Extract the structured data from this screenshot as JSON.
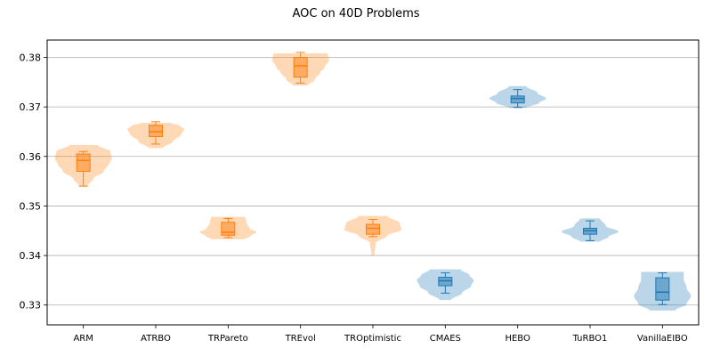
{
  "chart_data": {
    "type": "violin",
    "title": "AOC on 40D Problems",
    "xlabel": "",
    "ylabel": "",
    "ylim": [
      0.326,
      0.3835
    ],
    "yticks": [
      "0.33",
      "0.34",
      "0.35",
      "0.36",
      "0.37",
      "0.38"
    ],
    "grid": "horizontal",
    "colors": {
      "orange": "#ff7f0e",
      "blue": "#1f77b4"
    },
    "categories": [
      {
        "label": "ARM",
        "color": "orange",
        "violin_min": 0.354,
        "violin_max": 0.3623,
        "box": {
          "whisker_low": 0.354,
          "q1": 0.357,
          "median": 0.3592,
          "q3": 0.3605,
          "whisker_high": 0.361
        },
        "density": [
          [
            0.354,
            0.15
          ],
          [
            0.3555,
            0.35
          ],
          [
            0.357,
            0.72
          ],
          [
            0.3585,
            0.9
          ],
          [
            0.3595,
            1.0
          ],
          [
            0.361,
            0.95
          ],
          [
            0.3623,
            0.5
          ]
        ]
      },
      {
        "label": "ATRBO",
        "color": "orange",
        "violin_min": 0.3617,
        "violin_max": 0.3668,
        "box": {
          "whisker_low": 0.3625,
          "q1": 0.364,
          "median": 0.365,
          "q3": 0.3663,
          "whisker_high": 0.367
        },
        "density": [
          [
            0.3617,
            0.25
          ],
          [
            0.363,
            0.6
          ],
          [
            0.3645,
            0.9
          ],
          [
            0.3655,
            1.0
          ],
          [
            0.3662,
            0.85
          ],
          [
            0.3668,
            0.5
          ]
        ]
      },
      {
        "label": "TRPareto",
        "color": "orange",
        "violin_min": 0.3433,
        "violin_max": 0.3478,
        "box": {
          "whisker_low": 0.3436,
          "q1": 0.3441,
          "median": 0.3447,
          "q3": 0.3467,
          "whisker_high": 0.3475
        },
        "density": [
          [
            0.3433,
            0.6
          ],
          [
            0.344,
            0.8
          ],
          [
            0.3447,
            1.0
          ],
          [
            0.3455,
            0.75
          ],
          [
            0.3465,
            0.65
          ],
          [
            0.3478,
            0.6
          ]
        ]
      },
      {
        "label": "TREvol",
        "color": "orange",
        "violin_min": 0.3743,
        "violin_max": 0.3808,
        "box": {
          "whisker_low": 0.3748,
          "q1": 0.376,
          "median": 0.3783,
          "q3": 0.38,
          "whisker_high": 0.381
        },
        "density": [
          [
            0.3743,
            0.25
          ],
          [
            0.3755,
            0.5
          ],
          [
            0.377,
            0.7
          ],
          [
            0.378,
            0.85
          ],
          [
            0.3795,
            1.0
          ],
          [
            0.3808,
            0.95
          ]
        ]
      },
      {
        "label": "TROptimistic",
        "color": "orange",
        "violin_min": 0.34,
        "violin_max": 0.348,
        "box": {
          "whisker_low": 0.3438,
          "q1": 0.3443,
          "median": 0.3455,
          "q3": 0.3463,
          "whisker_high": 0.3473
        },
        "density": [
          [
            0.34,
            0.05
          ],
          [
            0.3425,
            0.1
          ],
          [
            0.344,
            0.5
          ],
          [
            0.3452,
            1.0
          ],
          [
            0.3465,
            0.95
          ],
          [
            0.348,
            0.5
          ]
        ]
      },
      {
        "label": "CMAES",
        "color": "blue",
        "violin_min": 0.331,
        "violin_max": 0.3372,
        "box": {
          "whisker_low": 0.3324,
          "q1": 0.3339,
          "median": 0.3349,
          "q3": 0.3356,
          "whisker_high": 0.3365
        },
        "density": [
          [
            0.331,
            0.2
          ],
          [
            0.3325,
            0.6
          ],
          [
            0.3338,
            0.9
          ],
          [
            0.335,
            1.0
          ],
          [
            0.336,
            0.85
          ],
          [
            0.3372,
            0.55
          ]
        ]
      },
      {
        "label": "HEBO",
        "color": "blue",
        "violin_min": 0.3698,
        "violin_max": 0.3742,
        "box": {
          "whisker_low": 0.3699,
          "q1": 0.3708,
          "median": 0.3717,
          "q3": 0.3722,
          "whisker_high": 0.3735
        },
        "density": [
          [
            0.3698,
            0.3
          ],
          [
            0.3708,
            0.75
          ],
          [
            0.3717,
            1.0
          ],
          [
            0.3728,
            0.7
          ],
          [
            0.3742,
            0.3
          ]
        ]
      },
      {
        "label": "TuRBO1",
        "color": "blue",
        "violin_min": 0.3428,
        "violin_max": 0.3475,
        "box": {
          "whisker_low": 0.343,
          "q1": 0.3443,
          "median": 0.345,
          "q3": 0.3455,
          "whisker_high": 0.347
        },
        "density": [
          [
            0.3428,
            0.35
          ],
          [
            0.3438,
            0.65
          ],
          [
            0.3448,
            1.0
          ],
          [
            0.346,
            0.55
          ],
          [
            0.3475,
            0.35
          ]
        ]
      },
      {
        "label": "VanillaEIBO",
        "color": "blue",
        "violin_min": 0.3289,
        "violin_max": 0.3367,
        "box": {
          "whisker_low": 0.3301,
          "q1": 0.331,
          "median": 0.3326,
          "q3": 0.3355,
          "whisker_high": 0.3365
        },
        "density": [
          [
            0.3289,
            0.45
          ],
          [
            0.3302,
            0.85
          ],
          [
            0.3318,
            1.0
          ],
          [
            0.3335,
            0.85
          ],
          [
            0.3352,
            0.75
          ],
          [
            0.3367,
            0.75
          ]
        ]
      }
    ]
  }
}
